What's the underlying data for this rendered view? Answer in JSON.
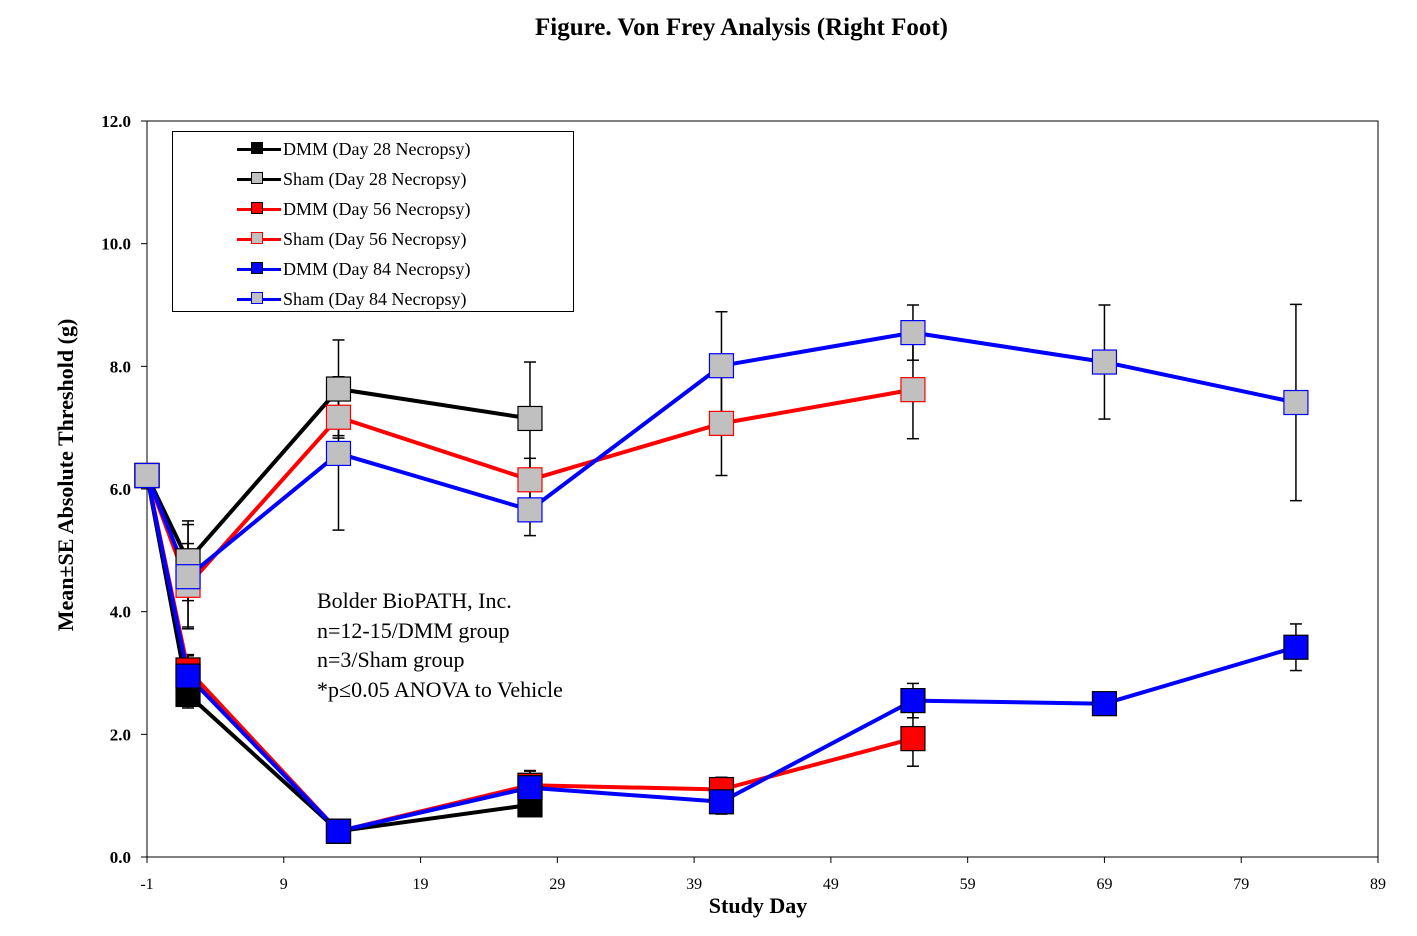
{
  "chart_data": {
    "type": "line",
    "title": "Figure. Von Frey Analysis (Right Foot)",
    "xlabel": "Study Day",
    "ylabel": "Mean±SE Absolute Threshold (g)",
    "xlim": [
      -1,
      89
    ],
    "ylim": [
      0,
      12
    ],
    "xticks": [
      -1,
      9,
      19,
      29,
      39,
      49,
      59,
      69,
      79,
      89
    ],
    "xtick_labels": [
      "-1",
      "9",
      "19",
      "29",
      "39",
      "49",
      "59",
      "69",
      "79",
      "89"
    ],
    "yticks": [
      0,
      2,
      4,
      6,
      8,
      10,
      12
    ],
    "ytick_labels": [
      "0.0",
      "2.0",
      "4.0",
      "6.0",
      "8.0",
      "10.0",
      "12.0"
    ],
    "grid": false,
    "legend_position": "top-left",
    "annotation": [
      "Bolder BioPATH, Inc.",
      "n=12-15/DMM group",
      "n=3/Sham group",
      "*p≤0.05 ANOVA to Vehicle"
    ],
    "series": [
      {
        "name": "DMM (Day 28 Necropsy)",
        "line_color": "#000000",
        "marker_color": "#000000",
        "x": [
          -1,
          2,
          13,
          27
        ],
        "y": [
          6.22,
          2.65,
          0.42,
          0.85
        ],
        "err": [
          0,
          0.22,
          0,
          0
        ]
      },
      {
        "name": "Sham (Day 28 Necropsy)",
        "line_color": "#000000",
        "marker_color": "#c0c0c0",
        "x": [
          -1,
          2,
          13,
          27
        ],
        "y": [
          6.22,
          4.83,
          7.63,
          7.15
        ],
        "err": [
          0,
          0.65,
          0.8,
          0.92
        ]
      },
      {
        "name": "DMM (Day 56 Necropsy)",
        "line_color": "#ff0000",
        "marker_color": "#ff0000",
        "x": [
          -1,
          2,
          13,
          27,
          41,
          55
        ],
        "y": [
          6.22,
          3.05,
          0.42,
          1.17,
          1.1,
          1.93
        ],
        "err": [
          0,
          0.25,
          0,
          0.23,
          0.2,
          0.45
        ]
      },
      {
        "name": "Sham (Day 56 Necropsy)",
        "line_color": "#ff0000",
        "marker_color": "#c0c0c0",
        "x": [
          -1,
          2,
          13,
          27,
          41,
          55
        ],
        "y": [
          6.22,
          4.43,
          7.17,
          6.15,
          7.07,
          7.62
        ],
        "err": [
          0,
          0.68,
          0.3,
          0.35,
          0.85,
          0.8
        ]
      },
      {
        "name": "DMM (Day 84 Necropsy)",
        "line_color": "#0000ff",
        "marker_color": "#0000ff",
        "x": [
          -1,
          2,
          13,
          27,
          41,
          55,
          69,
          83
        ],
        "y": [
          6.22,
          2.95,
          0.42,
          1.13,
          0.9,
          2.55,
          2.5,
          3.42
        ],
        "err": [
          0,
          0.33,
          0,
          0.28,
          0.2,
          0.28,
          0,
          0.38
        ]
      },
      {
        "name": "Sham (Day 84 Necropsy)",
        "line_color": "#0000ff",
        "marker_color": "#c0c0c0",
        "x": [
          -1,
          2,
          13,
          27,
          41,
          55,
          69,
          83
        ],
        "y": [
          6.22,
          4.57,
          6.58,
          5.66,
          8.01,
          8.55,
          8.07,
          7.41
        ],
        "err": [
          0,
          0.85,
          1.25,
          0.42,
          0.88,
          0.45,
          0.93,
          1.6
        ]
      }
    ]
  }
}
